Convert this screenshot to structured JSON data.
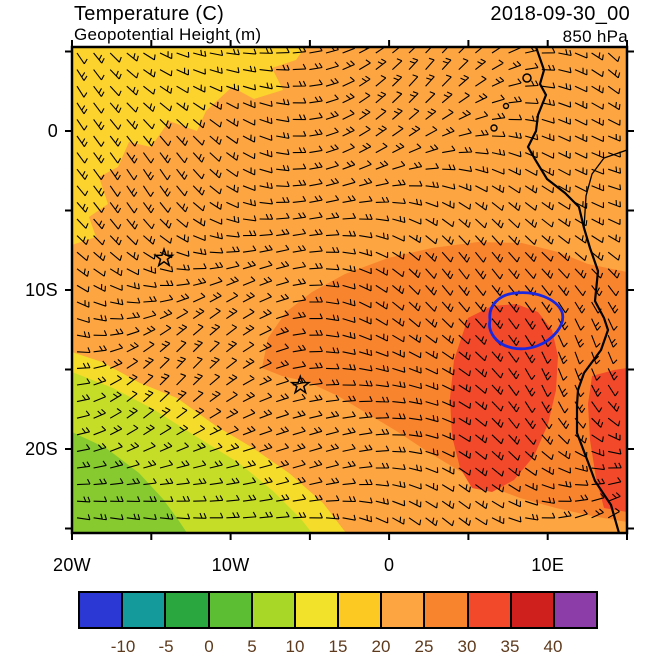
{
  "header": {
    "title_line1": "Temperature (C)",
    "title_line2": "Geopotential Height (m)",
    "datetime": "2018-09-30_00",
    "level": "850 hPa"
  },
  "axes": {
    "lat_labels": [
      {
        "value": 0,
        "label": "0"
      },
      {
        "value": -10,
        "label": "10S"
      },
      {
        "value": -20,
        "label": "20S"
      }
    ],
    "lon_labels": [
      {
        "value": -20,
        "label": "20W"
      },
      {
        "value": -10,
        "label": "10W"
      },
      {
        "value": 0,
        "label": "0"
      },
      {
        "value": 10,
        "label": "10E"
      }
    ],
    "minor_tick_interval_deg": 5
  },
  "colorbar": {
    "tick_labels": [
      "-10",
      "-5",
      "0",
      "5",
      "10",
      "15",
      "20",
      "25",
      "30",
      "35",
      "40"
    ],
    "cell_colors": [
      "#2b38d3",
      "#149a9a",
      "#2aa73e",
      "#5cbe33",
      "#a9d728",
      "#f2e22a",
      "#fcc822",
      "#fda541",
      "#f9842e",
      "#f2492a",
      "#cf201d",
      "#8d3da8"
    ],
    "label_color": "#5e3a1c"
  },
  "chart_data": {
    "type": "heatmap",
    "title": "Temperature (C)",
    "overlay": "Geopotential Height (m)",
    "valid_time": "2018-09-30_00",
    "pressure_level": "850 hPa",
    "projection": "latlon",
    "lon_range_deg": [
      -20,
      15
    ],
    "lat_range_deg": [
      -25.3,
      5.3
    ],
    "temperature_levels_c": [
      -10,
      -5,
      0,
      5,
      10,
      15,
      20,
      25,
      30,
      35,
      40
    ],
    "shaded_field_summary": {
      "background_c": "15-20 C orange over most of the domain",
      "northwest_band_c": "10-15 C yellow band along the northwest and top-left of the domain",
      "cool_sector_c": "5-15 C yellow-green/green cool sector in the southwest corner of the domain",
      "warm_region_c": "20-25 C broad warm region from the central ocean to the Angolan coast and interior",
      "hot_cores_c": "25-30 C cores near 5E,14S over the ocean and over coastal southern Angola/Namibia"
    },
    "wind_barbs": "850 hPa wind barbs over full domain, mostly easterly/southeasterly 5-15 kt",
    "height_contour": {
      "label": "closed geopotential height contour",
      "color": "#1b27df",
      "approx_center_lon": 8.3,
      "approx_center_lat": -11.8
    },
    "markers": [
      {
        "type": "star",
        "lon": -14.2,
        "lat": -8.0
      },
      {
        "type": "star",
        "lon": -5.6,
        "lat": -16.0
      }
    ],
    "region_fills": {
      "base": "#fda541",
      "yellow": "#fcd22d",
      "yellow_band": "#f6dc2a",
      "yellow_green": "#c6dd28",
      "green": "#86ca30",
      "warm": "#f9842e",
      "hot": "#f2492a"
    },
    "coastline": "west coast of Africa from Gulf of Guinea to Namibia"
  }
}
